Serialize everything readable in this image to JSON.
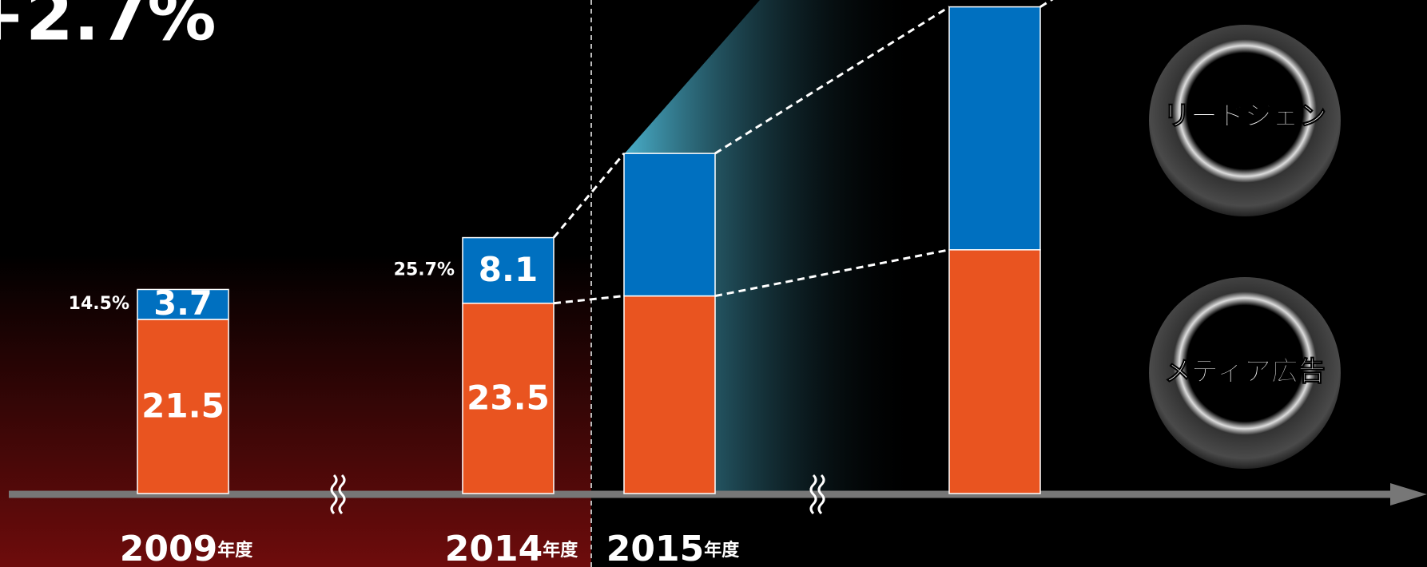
{
  "chart_data": {
    "type": "stacked-bar",
    "title": "+2.7%",
    "categories": [
      "2009",
      "2014",
      "2015",
      null
    ],
    "category_suffix": "年度",
    "series": [
      {
        "name": "メディア広告",
        "color": "#e95420",
        "values": [
          21.5,
          23.5,
          24.4,
          30.1
        ],
        "value_labels": [
          "21.5",
          "23.5",
          null,
          null
        ]
      },
      {
        "name": "リードジェン",
        "color": "#0070c0",
        "values": [
          3.7,
          8.1,
          17.6,
          30.0
        ],
        "value_labels": [
          "3.7",
          "8.1",
          null,
          null
        ]
      }
    ],
    "share_labels": [
      "14.5%",
      "25.7%",
      null,
      null
    ]
  }
}
